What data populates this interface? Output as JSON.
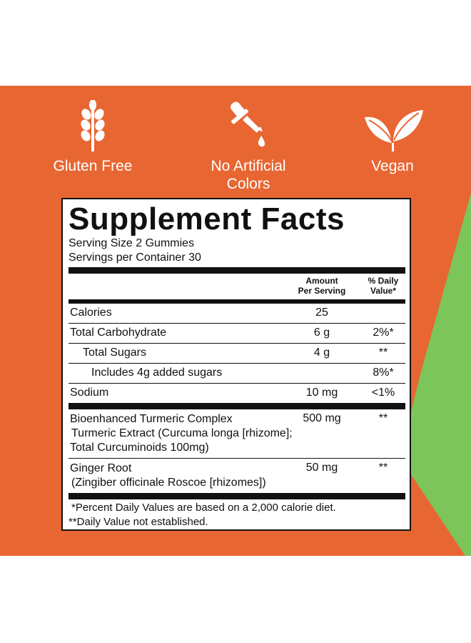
{
  "colors": {
    "band": "#e86632",
    "accent_green": "#7cc55a",
    "text": "#111111",
    "icon_white": "#ffffff"
  },
  "badges": [
    {
      "icon": "wheat-icon",
      "label": "Gluten Free"
    },
    {
      "icon": "dropper-icon",
      "label": "No Artificial\nColors"
    },
    {
      "icon": "leaf-icon",
      "label": "Vegan"
    }
  ],
  "facts": {
    "title": "Supplement Facts",
    "serving_size": "Serving Size 2 Gummies",
    "servings_per_container": "Servings per Container 30",
    "header_amount": "Amount\nPer Serving",
    "header_dv": "% Daily\nValue*",
    "rows": [
      {
        "name": "Calories",
        "amount": "25",
        "dv": ""
      },
      {
        "name": "Total Carbohydrate",
        "amount": "6 g",
        "dv": "2%*"
      },
      {
        "name": "Total Sugars",
        "amount": "4 g",
        "dv": "**"
      },
      {
        "name": "Includes 4g added sugars",
        "amount": "",
        "dv": "8%*"
      },
      {
        "name": "Sodium",
        "amount": "10 mg",
        "dv": "<1%"
      }
    ],
    "turmeric": {
      "line1": "Bioenhanced Turmeric Complex",
      "line2": "Turmeric Extract (Curcuma longa [rhizome];",
      "line3": "Total Curcuminoids 100mg)",
      "amount": "500 mg",
      "dv": "**"
    },
    "ginger": {
      "line1": "Ginger Root",
      "line2": "(Zingiber officinale Roscoe [rhizomes])",
      "amount": "50 mg",
      "dv": "**"
    },
    "footnote1": "*Percent Daily Values are based on a 2,000 calorie diet.",
    "footnote2": "**Daily Value not established."
  }
}
